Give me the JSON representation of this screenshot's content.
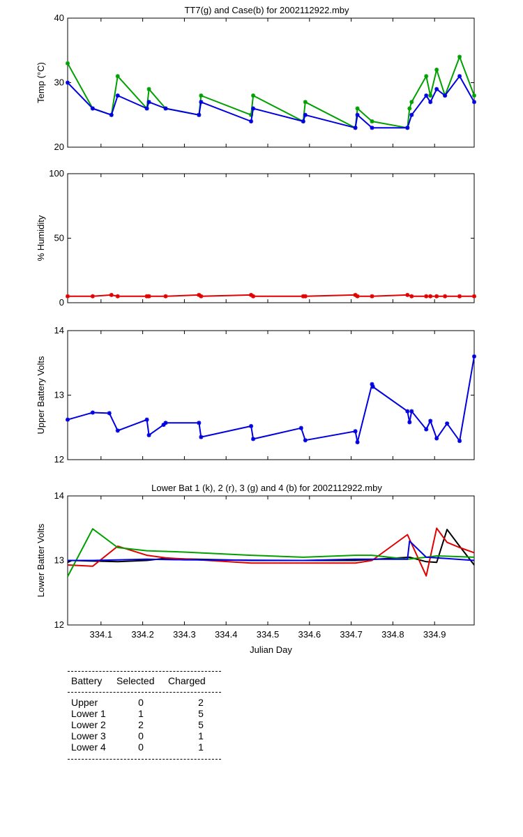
{
  "chart_data": [
    {
      "type": "line",
      "title": "TT7(g) and Case(b) for 2002112922.mby",
      "xlabel": "",
      "ylabel": "Temp  (°C)",
      "xlim": [
        334.02,
        334.995
      ],
      "ylim": [
        20,
        40
      ],
      "yticks": [
        20,
        30,
        40
      ],
      "series": [
        {
          "name": "TT7",
          "color": "#00a000",
          "markers": true,
          "x": [
            334.02,
            334.08,
            334.125,
            334.14,
            334.21,
            334.215,
            334.255,
            334.335,
            334.34,
            334.46,
            334.465,
            334.585,
            334.59,
            334.71,
            334.715,
            334.75,
            334.835,
            334.84,
            334.845,
            334.88,
            334.89,
            334.905,
            334.925,
            334.96,
            334.995
          ],
          "y": [
            33,
            26,
            25,
            31,
            26,
            29,
            26,
            25,
            28,
            25,
            28,
            24,
            27,
            23,
            26,
            24,
            23,
            26,
            27,
            31,
            28,
            32,
            28,
            34,
            28
          ]
        },
        {
          "name": "Case",
          "color": "#0000e0",
          "markers": true,
          "x": [
            334.02,
            334.08,
            334.125,
            334.14,
            334.21,
            334.215,
            334.255,
            334.335,
            334.34,
            334.46,
            334.465,
            334.585,
            334.59,
            334.71,
            334.715,
            334.75,
            334.835,
            334.845,
            334.88,
            334.89,
            334.905,
            334.925,
            334.96,
            334.995
          ],
          "y": [
            30,
            26,
            25,
            28,
            26,
            27,
            26,
            25,
            27,
            24,
            26,
            24,
            25,
            23,
            25,
            23,
            23,
            25,
            28,
            27,
            29,
            28,
            31,
            27
          ]
        }
      ]
    },
    {
      "type": "line",
      "title": "",
      "xlabel": "",
      "ylabel": "% Humidity",
      "xlim": [
        334.02,
        334.995
      ],
      "ylim": [
        0,
        100
      ],
      "yticks": [
        0,
        50,
        100
      ],
      "series": [
        {
          "name": "Humidity",
          "color": "#e00000",
          "markers": true,
          "x": [
            334.02,
            334.08,
            334.125,
            334.14,
            334.21,
            334.215,
            334.255,
            334.335,
            334.34,
            334.46,
            334.465,
            334.585,
            334.59,
            334.71,
            334.715,
            334.75,
            334.835,
            334.845,
            334.88,
            334.89,
            334.905,
            334.925,
            334.96,
            334.995
          ],
          "y": [
            5,
            5,
            6,
            5,
            5,
            5,
            5,
            6,
            5,
            6,
            5,
            5,
            5,
            6,
            5,
            5,
            6,
            5,
            5,
            5,
            5,
            5,
            5,
            5
          ]
        }
      ]
    },
    {
      "type": "line",
      "title": "",
      "xlabel": "",
      "ylabel": "Upper Battery Volts",
      "xlim": [
        334.02,
        334.995
      ],
      "ylim": [
        12,
        14
      ],
      "yticks": [
        12,
        13,
        14
      ],
      "series": [
        {
          "name": "Upper",
          "color": "#0000e0",
          "markers": true,
          "x": [
            334.02,
            334.08,
            334.12,
            334.14,
            334.21,
            334.215,
            334.25,
            334.255,
            334.335,
            334.34,
            334.46,
            334.465,
            334.58,
            334.59,
            334.71,
            334.715,
            334.75,
            334.752,
            334.835,
            334.84,
            334.845,
            334.88,
            334.89,
            334.905,
            334.93,
            334.96,
            334.995
          ],
          "y": [
            12.62,
            12.73,
            12.72,
            12.45,
            12.62,
            12.38,
            12.54,
            12.57,
            12.57,
            12.35,
            12.52,
            12.32,
            12.49,
            12.3,
            12.44,
            12.27,
            13.17,
            13.13,
            12.75,
            12.58,
            12.75,
            12.47,
            12.6,
            12.33,
            12.56,
            12.29,
            13.6
          ]
        }
      ]
    },
    {
      "type": "line",
      "title": "Lower Bat 1 (k), 2 (r), 3 (g) and 4 (b) for 2002112922.mby",
      "xlabel": "Julian Day",
      "ylabel": "Lower Batter Volts",
      "xlim": [
        334.02,
        334.995
      ],
      "ylim": [
        12,
        14
      ],
      "yticks": [
        12,
        13,
        14
      ],
      "xticks": [
        334.1,
        334.2,
        334.3,
        334.4,
        334.5,
        334.6,
        334.7,
        334.8,
        334.9
      ],
      "xticklabels": [
        "334.1",
        "334.2",
        "334.3",
        "334.4",
        "334.5",
        "334.6",
        "334.7",
        "334.8",
        "334.9"
      ],
      "series": [
        {
          "name": "Lower 1",
          "color": "#000000",
          "markers": false,
          "x": [
            334.02,
            334.03,
            334.08,
            334.14,
            334.21,
            334.25,
            334.46,
            334.71,
            334.84,
            334.88,
            334.905,
            334.93,
            334.96,
            334.995
          ],
          "y": [
            12.97,
            13.0,
            12.99,
            12.98,
            13.0,
            13.03,
            13.0,
            13.0,
            13.05,
            12.98,
            12.97,
            13.48,
            13.22,
            12.93
          ]
        },
        {
          "name": "Lower 2",
          "color": "#e00000",
          "markers": false,
          "x": [
            334.02,
            334.08,
            334.14,
            334.21,
            334.255,
            334.46,
            334.71,
            334.75,
            334.835,
            334.88,
            334.905,
            334.93,
            334.96,
            334.995
          ],
          "y": [
            12.93,
            12.91,
            13.22,
            13.08,
            13.04,
            12.96,
            12.96,
            13.0,
            13.4,
            12.76,
            13.5,
            13.28,
            13.2,
            13.12
          ]
        },
        {
          "name": "Lower 3",
          "color": "#00a000",
          "markers": false,
          "x": [
            334.02,
            334.08,
            334.14,
            334.21,
            334.3,
            334.46,
            334.585,
            334.71,
            334.75,
            334.835,
            334.88,
            334.905,
            334.995
          ],
          "y": [
            12.75,
            13.49,
            13.2,
            13.15,
            13.13,
            13.08,
            13.05,
            13.08,
            13.08,
            13.02,
            13.05,
            13.07,
            13.05
          ]
        },
        {
          "name": "Lower 4",
          "color": "#0000e0",
          "markers": false,
          "x": [
            334.02,
            334.08,
            334.21,
            334.3,
            334.585,
            334.71,
            334.835,
            334.84,
            334.88,
            334.905,
            334.995
          ],
          "y": [
            13.0,
            13.0,
            13.02,
            13.01,
            13.0,
            13.02,
            13.02,
            13.3,
            13.05,
            13.04,
            13.0
          ]
        }
      ]
    }
  ],
  "battery_table": {
    "headers": [
      "Battery",
      "Selected",
      "Charged"
    ],
    "rows": [
      {
        "name": "Upper",
        "selected": "0",
        "charged": "2"
      },
      {
        "name": "Lower 1",
        "selected": "1",
        "charged": "5"
      },
      {
        "name": "Lower 2",
        "selected": "2",
        "charged": "5"
      },
      {
        "name": "Lower 3",
        "selected": "0",
        "charged": "1"
      },
      {
        "name": "Lower 4",
        "selected": "0",
        "charged": "1"
      }
    ]
  }
}
